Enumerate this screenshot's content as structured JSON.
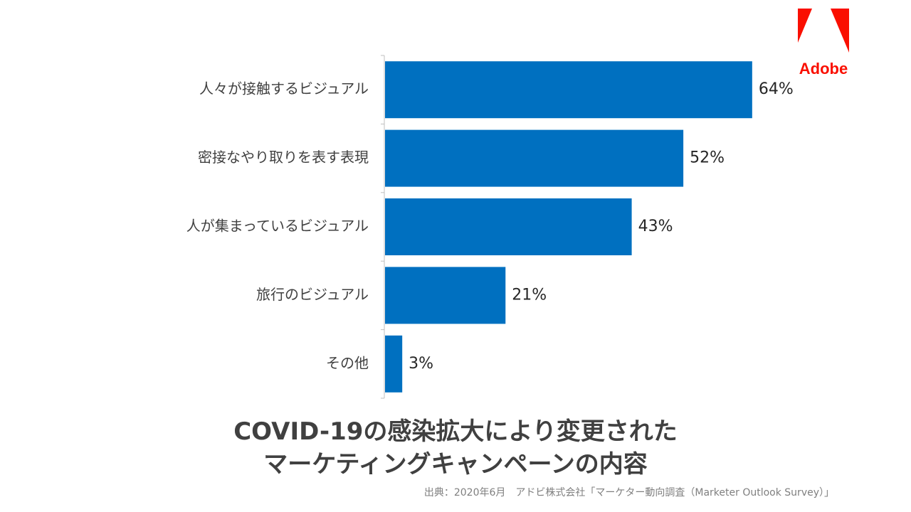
{
  "brand": {
    "name": "Adobe",
    "color": "#FA0F00"
  },
  "chart_data": {
    "type": "bar",
    "orientation": "horizontal",
    "categories": [
      "人々が接触するビジュアル",
      "密接なやり取りを表す表現",
      "人が集まっているビジュアル",
      "旅行のビジュアル",
      "その他"
    ],
    "values": [
      64,
      52,
      43,
      21,
      3
    ],
    "value_labels": [
      "64%",
      "52%",
      "43%",
      "21%",
      "3%"
    ],
    "unit": "%",
    "xlim": [
      0,
      100
    ],
    "bar_color": "#0070C0",
    "grid": false,
    "legend": "none"
  },
  "title_lines": [
    "COVID-19の感染拡大により変更された",
    "マーケティングキャンペーンの内容"
  ],
  "source": "出典：2020年6月　アドビ株式会社「マーケター動向調査（Marketer Outlook Survey）」"
}
